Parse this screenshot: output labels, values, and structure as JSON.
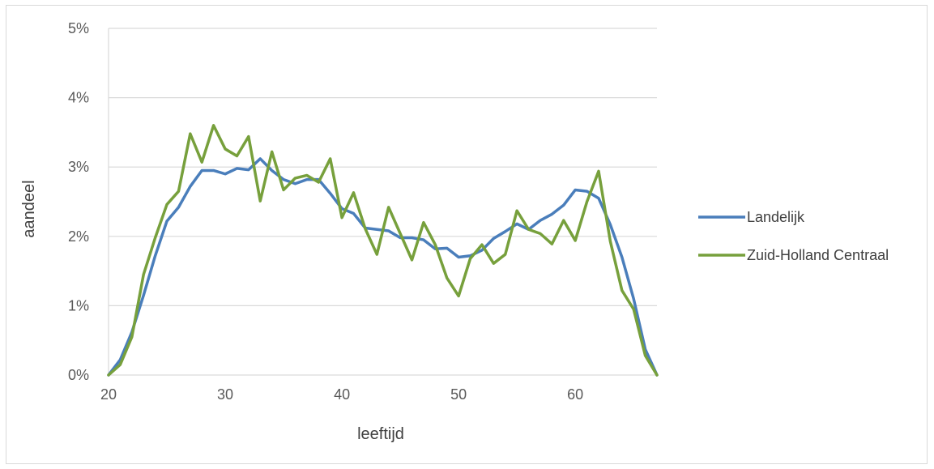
{
  "chart_data": {
    "type": "line",
    "xlabel": "leeftijd",
    "ylabel": "aandeel",
    "xlim": [
      20,
      67
    ],
    "ylim": [
      0,
      5
    ],
    "x_ticks": [
      20,
      30,
      40,
      50,
      60
    ],
    "y_ticks": [
      0,
      1,
      2,
      3,
      4,
      5
    ],
    "y_tick_labels": [
      "0%",
      "1%",
      "2%",
      "3%",
      "4%",
      "5%"
    ],
    "grid": "horizontal",
    "legend_position": "right",
    "x": [
      20,
      21,
      22,
      23,
      24,
      25,
      26,
      27,
      28,
      29,
      30,
      31,
      32,
      33,
      34,
      35,
      36,
      37,
      38,
      39,
      40,
      41,
      42,
      43,
      44,
      45,
      46,
      47,
      48,
      49,
      50,
      51,
      52,
      53,
      54,
      55,
      56,
      57,
      58,
      59,
      60,
      61,
      62,
      63,
      64,
      65,
      66,
      67
    ],
    "series": [
      {
        "name": "Landelijk",
        "color": "#4a7ebb",
        "values": [
          0.0,
          0.22,
          0.62,
          1.15,
          1.72,
          2.22,
          2.42,
          2.72,
          2.95,
          2.95,
          2.9,
          2.98,
          2.96,
          3.12,
          2.95,
          2.82,
          2.76,
          2.82,
          2.82,
          2.62,
          2.4,
          2.33,
          2.12,
          2.1,
          2.08,
          1.98,
          1.98,
          1.95,
          1.82,
          1.83,
          1.7,
          1.72,
          1.8,
          1.97,
          2.07,
          2.18,
          2.1,
          2.23,
          2.32,
          2.45,
          2.67,
          2.65,
          2.55,
          2.17,
          1.7,
          1.1,
          0.37,
          0.0
        ]
      },
      {
        "name": "Zuid-Holland Centraal",
        "color": "#77a03c",
        "values": [
          0.0,
          0.15,
          0.55,
          1.45,
          1.98,
          2.46,
          2.65,
          3.48,
          3.07,
          3.6,
          3.26,
          3.16,
          3.44,
          2.51,
          3.22,
          2.67,
          2.84,
          2.88,
          2.78,
          3.12,
          2.27,
          2.63,
          2.11,
          1.74,
          2.42,
          2.04,
          1.66,
          2.2,
          1.88,
          1.4,
          1.14,
          1.68,
          1.88,
          1.61,
          1.74,
          2.37,
          2.1,
          2.04,
          1.89,
          2.23,
          1.94,
          2.5,
          2.94,
          1.93,
          1.22,
          0.95,
          0.28,
          0.0
        ]
      }
    ]
  }
}
